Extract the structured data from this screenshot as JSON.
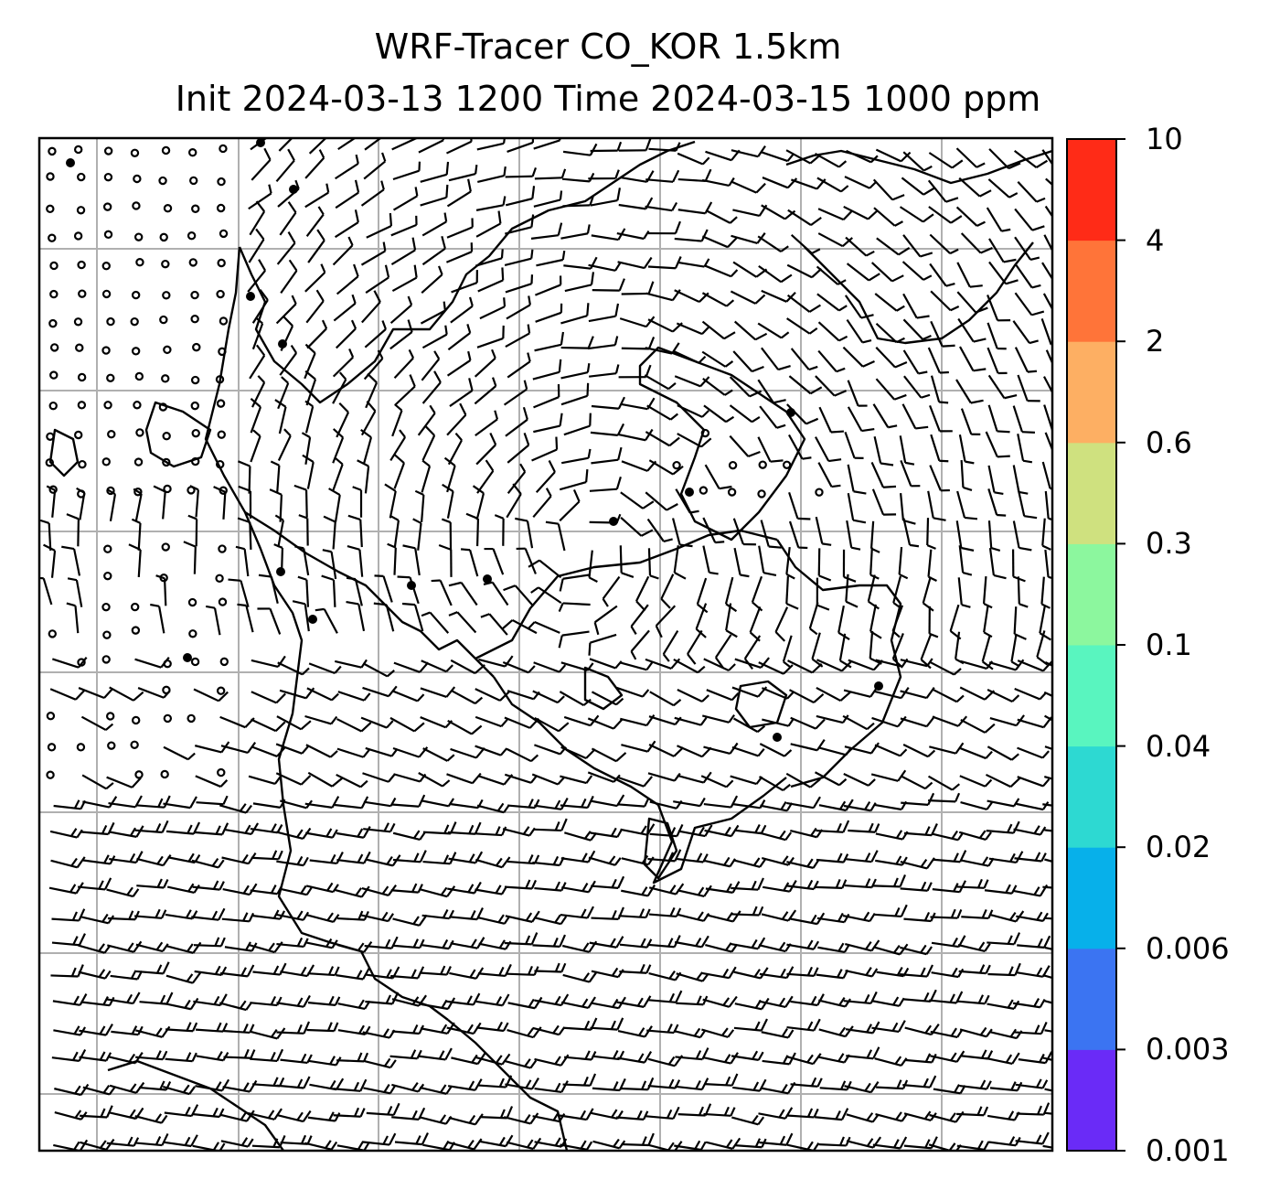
{
  "title": {
    "line1": "WRF-Tracer CO_KOR 1.5km",
    "line2": "Init 2024-03-13 1200 Time 2024-03-15 1000 ppm"
  },
  "colorbar": {
    "levels": [
      "0.001",
      "0.003",
      "0.006",
      "0.02",
      "0.04",
      "0.1",
      "0.3",
      "0.6",
      "2",
      "4",
      "10"
    ],
    "colors": [
      "#6a2bf7",
      "#3b74f2",
      "#07b0ea",
      "#2dd9d2",
      "#59f5bf",
      "#8cf79e",
      "#cfe17f",
      "#fdaf63",
      "#ff7439",
      "#ff2b17"
    ]
  },
  "map": {
    "frame_color": "#000000",
    "grid_color": "#b0b0b0",
    "coastline_color": "#000000",
    "barb_color": "#000000",
    "grid_lines_vertical": 7,
    "grid_lines_horizontal": 7
  }
}
